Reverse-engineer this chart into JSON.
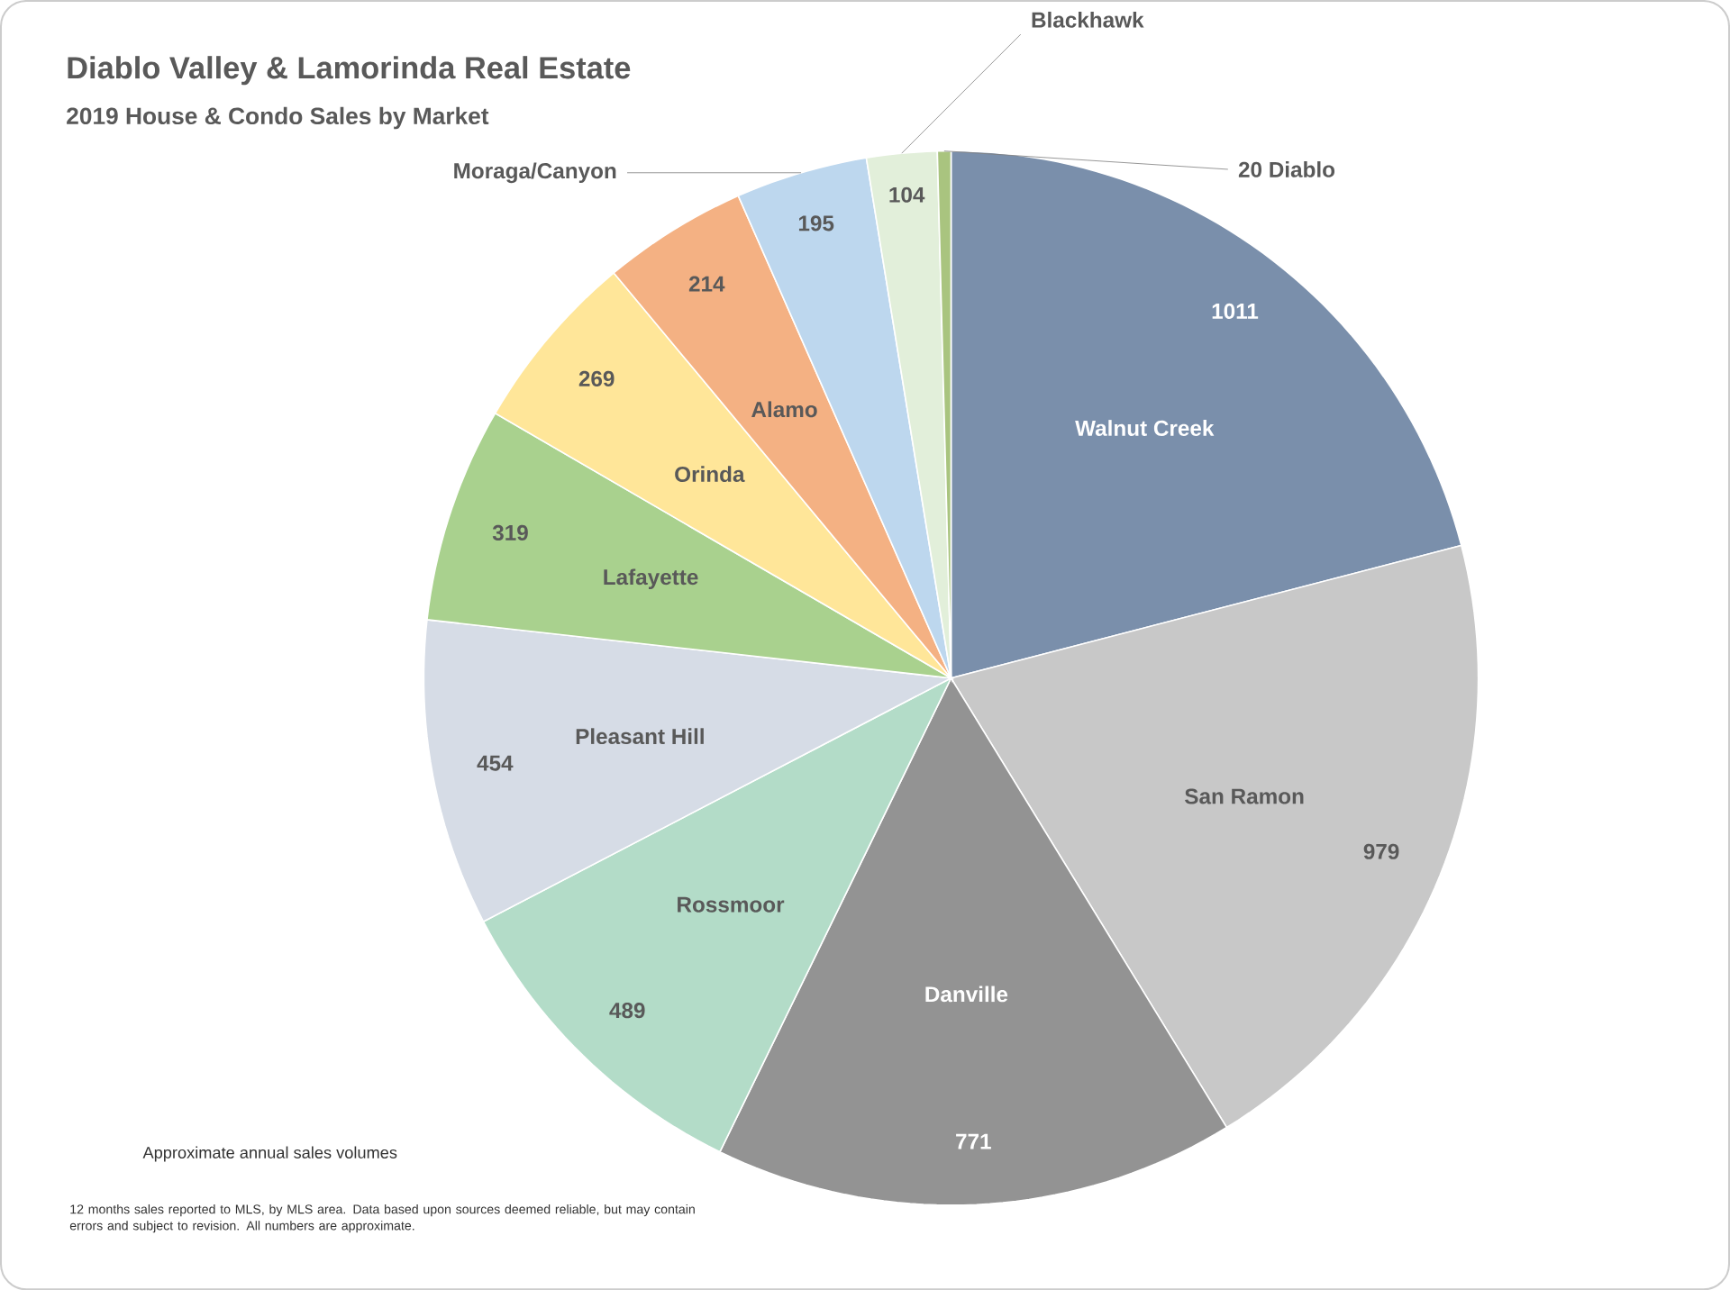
{
  "chart_data": {
    "type": "pie",
    "title": "Diablo Valley & Lamorinda Real Estate",
    "subtitle": "2019 House & Condo Sales by Market",
    "categories": [
      "Walnut Creek",
      "San Ramon",
      "Danville",
      "Rossmoor",
      "Pleasant Hill",
      "Lafayette",
      "Orinda",
      "Alamo",
      "Moraga/Canyon",
      "Blackhawk",
      "Diablo"
    ],
    "values": [
      1011,
      979,
      771,
      489,
      454,
      319,
      269,
      214,
      195,
      104,
      20
    ],
    "colors": [
      "#7a8fab",
      "#c8c8c8",
      "#939393",
      "#b3dcc8",
      "#d6dce6",
      "#a9d18e",
      "#ffe699",
      "#f4b183",
      "#bdd7ee",
      "#e2efda",
      "#a9c47f"
    ],
    "data_labels": true,
    "annotations": [
      "Approximate annual sales volumes",
      "12 months sales reported to MLS, by MLS area. Data based upon sources deemed reliable, but may contain errors and subject to revision. All numbers are approximate."
    ]
  }
}
